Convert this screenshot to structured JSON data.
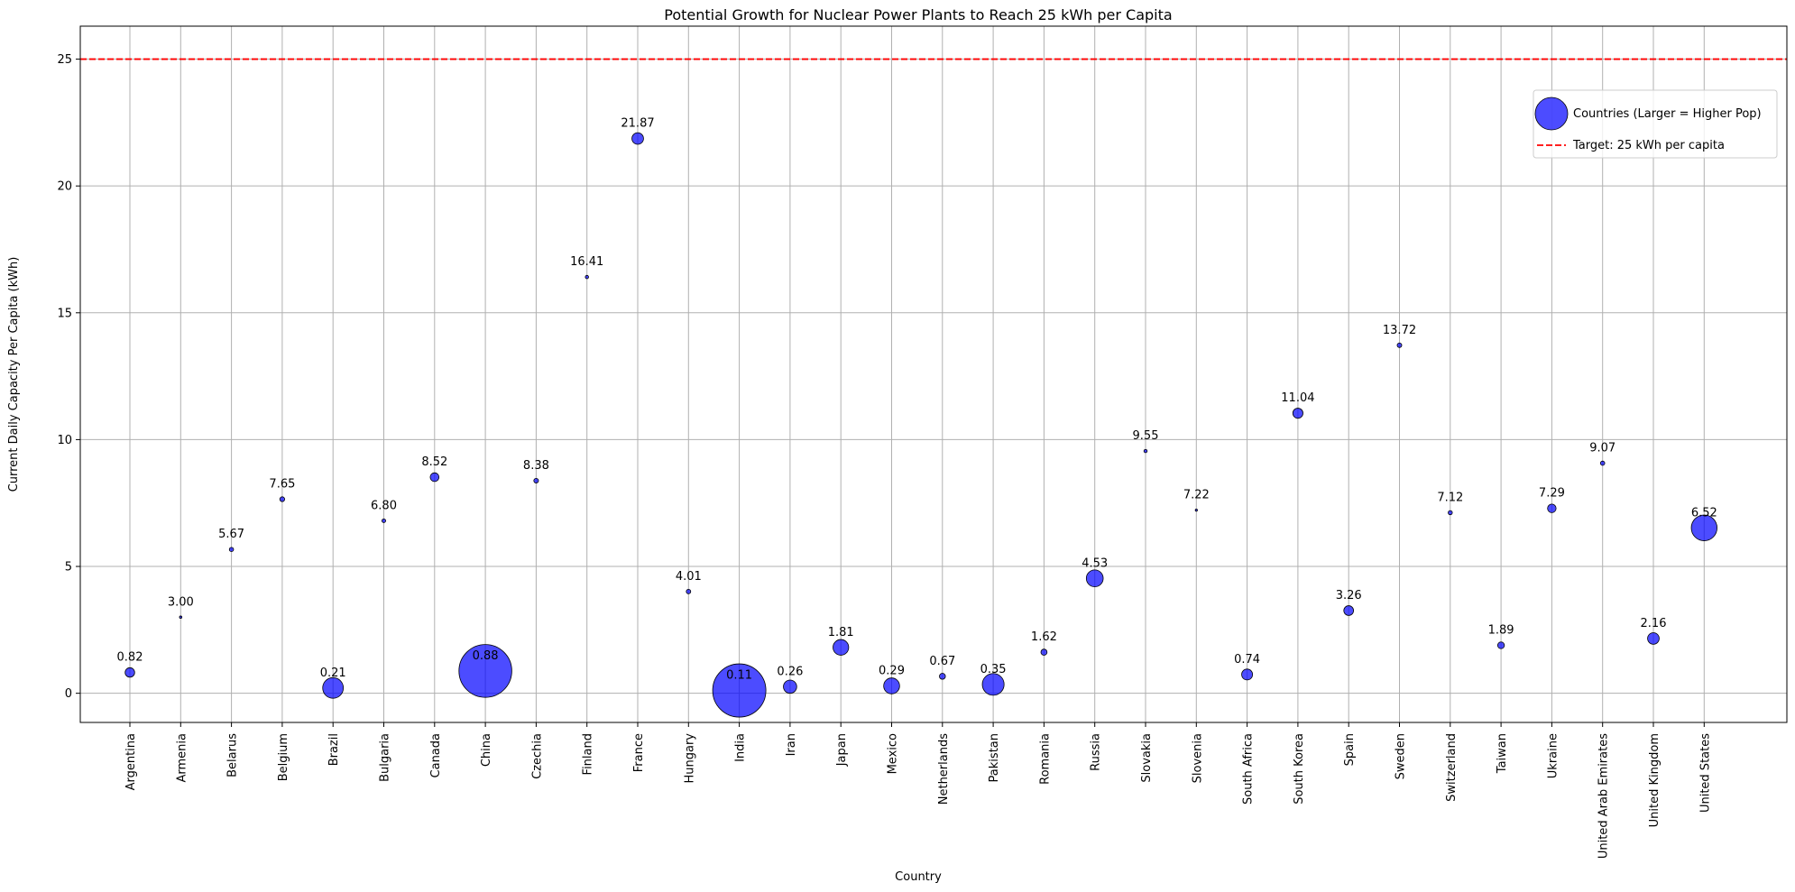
{
  "chart_data": {
    "type": "scatter",
    "title": "Potential Growth for Nuclear Power Plants to Reach 25 kWh per Capita",
    "xlabel": "Country",
    "ylabel": "Current Daily Capacity Per Capita (kWh)",
    "ylim": [
      -1.15,
      26.3
    ],
    "yticks": [
      "0",
      "5",
      "10",
      "15",
      "20",
      "25"
    ],
    "grid": true,
    "legend_position": "upper-right",
    "bubble_color": "#0000ff",
    "target_color": "#ff0000",
    "target_value": 25,
    "legend": {
      "series_label": "Countries (Larger = Higher Pop)",
      "target_label": "Target: 25 kWh per capita"
    },
    "categories": [
      "Argentina",
      "Armenia",
      "Belarus",
      "Belgium",
      "Brazil",
      "Bulgaria",
      "Canada",
      "China",
      "Czechia",
      "Finland",
      "France",
      "Hungary",
      "India",
      "Iran",
      "Japan",
      "Mexico",
      "Netherlands",
      "Pakistan",
      "Romania",
      "Russia",
      "Slovakia",
      "Slovenia",
      "South Africa",
      "South Korea",
      "Spain",
      "Sweden",
      "Switzerland",
      "Taiwan",
      "Ukraine",
      "United Arab Emirates",
      "United Kingdom",
      "United States"
    ],
    "values": [
      0.82,
      3.0,
      5.67,
      7.65,
      0.21,
      6.8,
      8.52,
      0.88,
      8.38,
      16.41,
      21.87,
      4.01,
      0.11,
      0.26,
      1.81,
      0.29,
      0.67,
      0.35,
      1.62,
      4.53,
      9.55,
      7.22,
      0.74,
      11.04,
      3.26,
      13.72,
      7.12,
      1.89,
      7.29,
      9.07,
      2.16,
      6.52
    ],
    "value_labels": [
      "0.82",
      "3.00",
      "5.67",
      "7.65",
      "0.21",
      "6.80",
      "8.52",
      "0.88",
      "8.38",
      "16.41",
      "21.87",
      "4.01",
      "0.11",
      "0.26",
      "1.81",
      "0.29",
      "0.67",
      "0.35",
      "1.62",
      "4.53",
      "9.55",
      "7.22",
      "0.74",
      "11.04",
      "3.26",
      "13.72",
      "7.12",
      "1.89",
      "7.29",
      "9.07",
      "2.16",
      "6.52"
    ],
    "population_millions": [
      46,
      3,
      9,
      12,
      216,
      7,
      39,
      1410,
      11,
      5.5,
      68,
      10,
      1430,
      89,
      124,
      128,
      18,
      240,
      19,
      144,
      5.4,
      2.1,
      60,
      52,
      48,
      10.5,
      8.8,
      23,
      37,
      9.4,
      68,
      335
    ]
  }
}
